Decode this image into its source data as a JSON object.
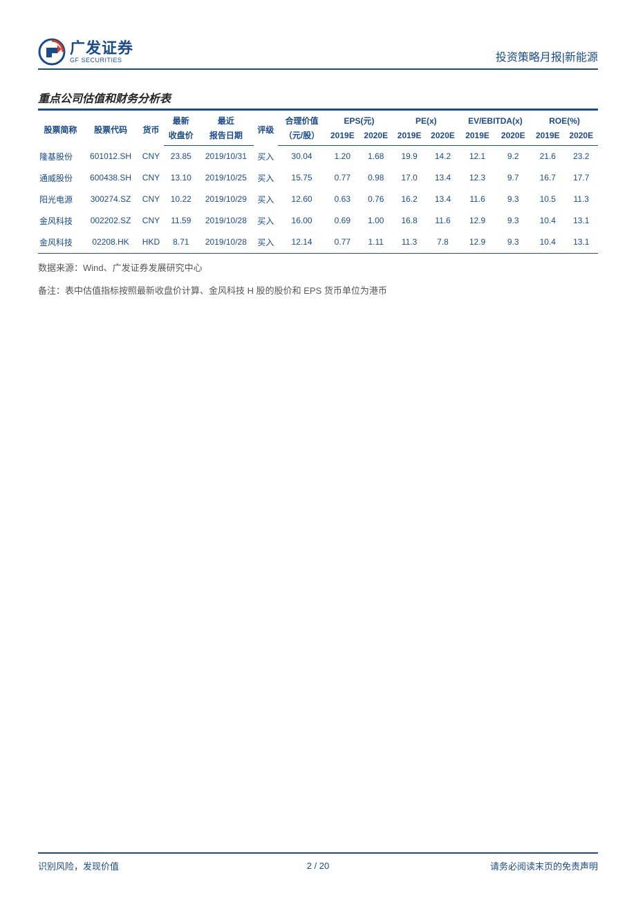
{
  "brand": {
    "name_cn": "广发证券",
    "name_en": "GF SECURITIES",
    "logo_colors": {
      "circle": "#1a4a8a",
      "arrow": "#d63a2a"
    }
  },
  "header": {
    "right_text": "投资策略月报|新能源"
  },
  "section": {
    "title": "重点公司估值和财务分析表"
  },
  "table": {
    "colors": {
      "header_text": "#1a4a8a",
      "cell_text": "#1a4a8a",
      "rule": "#1a4a8a"
    },
    "header_groups": {
      "name": "股票简称",
      "code": "股票代码",
      "currency": "货币",
      "latest_top": "最新",
      "latest_sub": "收盘价",
      "recent_top": "最近",
      "recent_sub": "报告日期",
      "rating": "评级",
      "fair_top": "合理价值",
      "fair_sub": "（元/股）",
      "eps": "EPS(元)",
      "pe": "PE(x)",
      "evebitda": "EV/EBITDA(x)",
      "roe": "ROE(%)",
      "y2019": "2019E",
      "y2020": "2020E"
    },
    "rows": [
      {
        "name": "隆基股份",
        "code": "601012.SH",
        "ccy": "CNY",
        "close": "23.85",
        "date": "2019/10/31",
        "rating": "买入",
        "fv": "30.04",
        "eps19": "1.20",
        "eps20": "1.68",
        "pe19": "19.9",
        "pe20": "14.2",
        "ev19": "12.1",
        "ev20": "9.2",
        "roe19": "21.6",
        "roe20": "23.2"
      },
      {
        "name": "通威股份",
        "code": "600438.SH",
        "ccy": "CNY",
        "close": "13.10",
        "date": "2019/10/25",
        "rating": "买入",
        "fv": "15.75",
        "eps19": "0.77",
        "eps20": "0.98",
        "pe19": "17.0",
        "pe20": "13.4",
        "ev19": "12.3",
        "ev20": "9.7",
        "roe19": "16.7",
        "roe20": "17.7"
      },
      {
        "name": "阳光电源",
        "code": "300274.SZ",
        "ccy": "CNY",
        "close": "10.22",
        "date": "2019/10/29",
        "rating": "买入",
        "fv": "12.60",
        "eps19": "0.63",
        "eps20": "0.76",
        "pe19": "16.2",
        "pe20": "13.4",
        "ev19": "11.6",
        "ev20": "9.3",
        "roe19": "10.5",
        "roe20": "11.3"
      },
      {
        "name": "金风科技",
        "code": "002202.SZ",
        "ccy": "CNY",
        "close": "11.59",
        "date": "2019/10/28",
        "rating": "买入",
        "fv": "16.00",
        "eps19": "0.69",
        "eps20": "1.00",
        "pe19": "16.8",
        "pe20": "11.6",
        "ev19": "12.9",
        "ev20": "9.3",
        "roe19": "10.4",
        "roe20": "13.1"
      },
      {
        "name": "金风科技",
        "code": "02208.HK",
        "ccy": "HKD",
        "close": "8.71",
        "date": "2019/10/28",
        "rating": "买入",
        "fv": "12.14",
        "eps19": "0.77",
        "eps20": "1.11",
        "pe19": "11.3",
        "pe20": "7.8",
        "ev19": "12.9",
        "ev20": "9.3",
        "roe19": "10.4",
        "roe20": "13.1"
      }
    ]
  },
  "source": "数据来源：Wind、广发证券发展研究中心",
  "note": "备注：表中估值指标按照最新收盘价计算、金风科技 H 股的股价和 EPS 货币单位为港币",
  "footer": {
    "left": "识别风险，发现价值",
    "page_current": "2",
    "page_sep": " / ",
    "page_total": "20",
    "right": "请务必阅读末页的免责声明"
  }
}
